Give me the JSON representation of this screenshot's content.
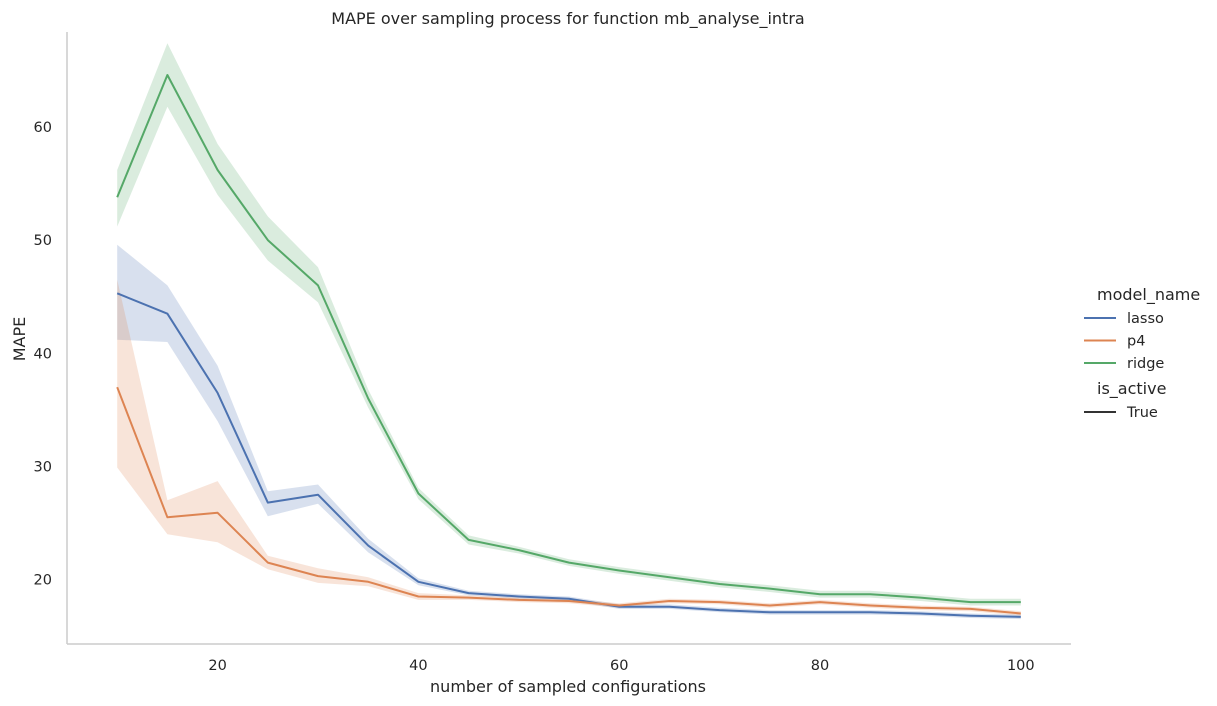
{
  "chart_data": {
    "type": "line",
    "title": "MAPE over sampling process for function mb_analyse_intra",
    "xlabel": "number of sampled configurations",
    "ylabel": "MAPE",
    "xlim": [
      5,
      105
    ],
    "ylim": [
      14.3,
      68.4
    ],
    "xticks": [
      20,
      40,
      60,
      80,
      100
    ],
    "yticks": [
      20,
      30,
      40,
      50,
      60
    ],
    "grid": false,
    "legend": {
      "placement": "right",
      "hue_title": "model_name",
      "style_title": "is_active",
      "style_entries": [
        "True"
      ]
    },
    "x": [
      10,
      15,
      20,
      25,
      30,
      35,
      40,
      45,
      50,
      55,
      60,
      65,
      70,
      75,
      80,
      85,
      90,
      95,
      100
    ],
    "series": [
      {
        "name": "lasso",
        "color": "#4c72b0",
        "values": [
          45.3,
          43.5,
          36.5,
          26.8,
          27.5,
          23.0,
          19.8,
          18.8,
          18.5,
          18.3,
          17.6,
          17.6,
          17.3,
          17.1,
          17.1,
          17.1,
          17.0,
          16.8,
          16.7
        ],
        "lower": [
          41.2,
          41.0,
          34.0,
          25.6,
          26.7,
          22.4,
          19.5,
          18.6,
          18.3,
          18.1,
          17.4,
          17.4,
          17.1,
          16.9,
          16.9,
          16.9,
          16.8,
          16.6,
          16.5
        ],
        "upper": [
          49.6,
          46.0,
          38.9,
          27.8,
          28.4,
          23.6,
          20.1,
          19.0,
          18.7,
          18.5,
          17.8,
          17.8,
          17.5,
          17.3,
          17.3,
          17.3,
          17.2,
          17.0,
          16.9
        ]
      },
      {
        "name": "p4",
        "color": "#dd8452",
        "values": [
          37.0,
          25.5,
          25.9,
          21.5,
          20.3,
          19.8,
          18.5,
          18.4,
          18.2,
          18.1,
          17.7,
          18.1,
          18.0,
          17.7,
          18.0,
          17.7,
          17.5,
          17.4,
          17.0
        ],
        "lower": [
          29.9,
          24.0,
          23.3,
          20.9,
          19.7,
          19.4,
          18.2,
          18.2,
          18.0,
          17.9,
          17.5,
          17.9,
          17.8,
          17.5,
          17.8,
          17.5,
          17.3,
          17.2,
          16.8
        ],
        "upper": [
          46.5,
          27.0,
          28.7,
          22.1,
          21.0,
          20.2,
          18.8,
          18.6,
          18.4,
          18.3,
          17.9,
          18.3,
          18.2,
          17.9,
          18.2,
          17.9,
          17.7,
          17.6,
          17.2
        ]
      },
      {
        "name": "ridge",
        "color": "#55a868",
        "values": [
          53.8,
          64.6,
          56.2,
          50.0,
          46.0,
          36.0,
          27.6,
          23.5,
          22.6,
          21.5,
          20.8,
          20.2,
          19.6,
          19.2,
          18.7,
          18.7,
          18.4,
          18.0,
          18.0
        ],
        "lower": [
          51.2,
          61.8,
          54.0,
          48.2,
          44.5,
          35.2,
          27.1,
          23.1,
          22.3,
          21.2,
          20.5,
          19.9,
          19.3,
          18.9,
          18.4,
          18.4,
          18.1,
          17.7,
          17.7
        ],
        "upper": [
          56.2,
          67.4,
          58.5,
          52.1,
          47.6,
          36.8,
          28.1,
          23.9,
          22.9,
          21.8,
          21.1,
          20.5,
          19.9,
          19.5,
          19.0,
          19.0,
          18.7,
          18.3,
          18.3
        ]
      }
    ]
  }
}
